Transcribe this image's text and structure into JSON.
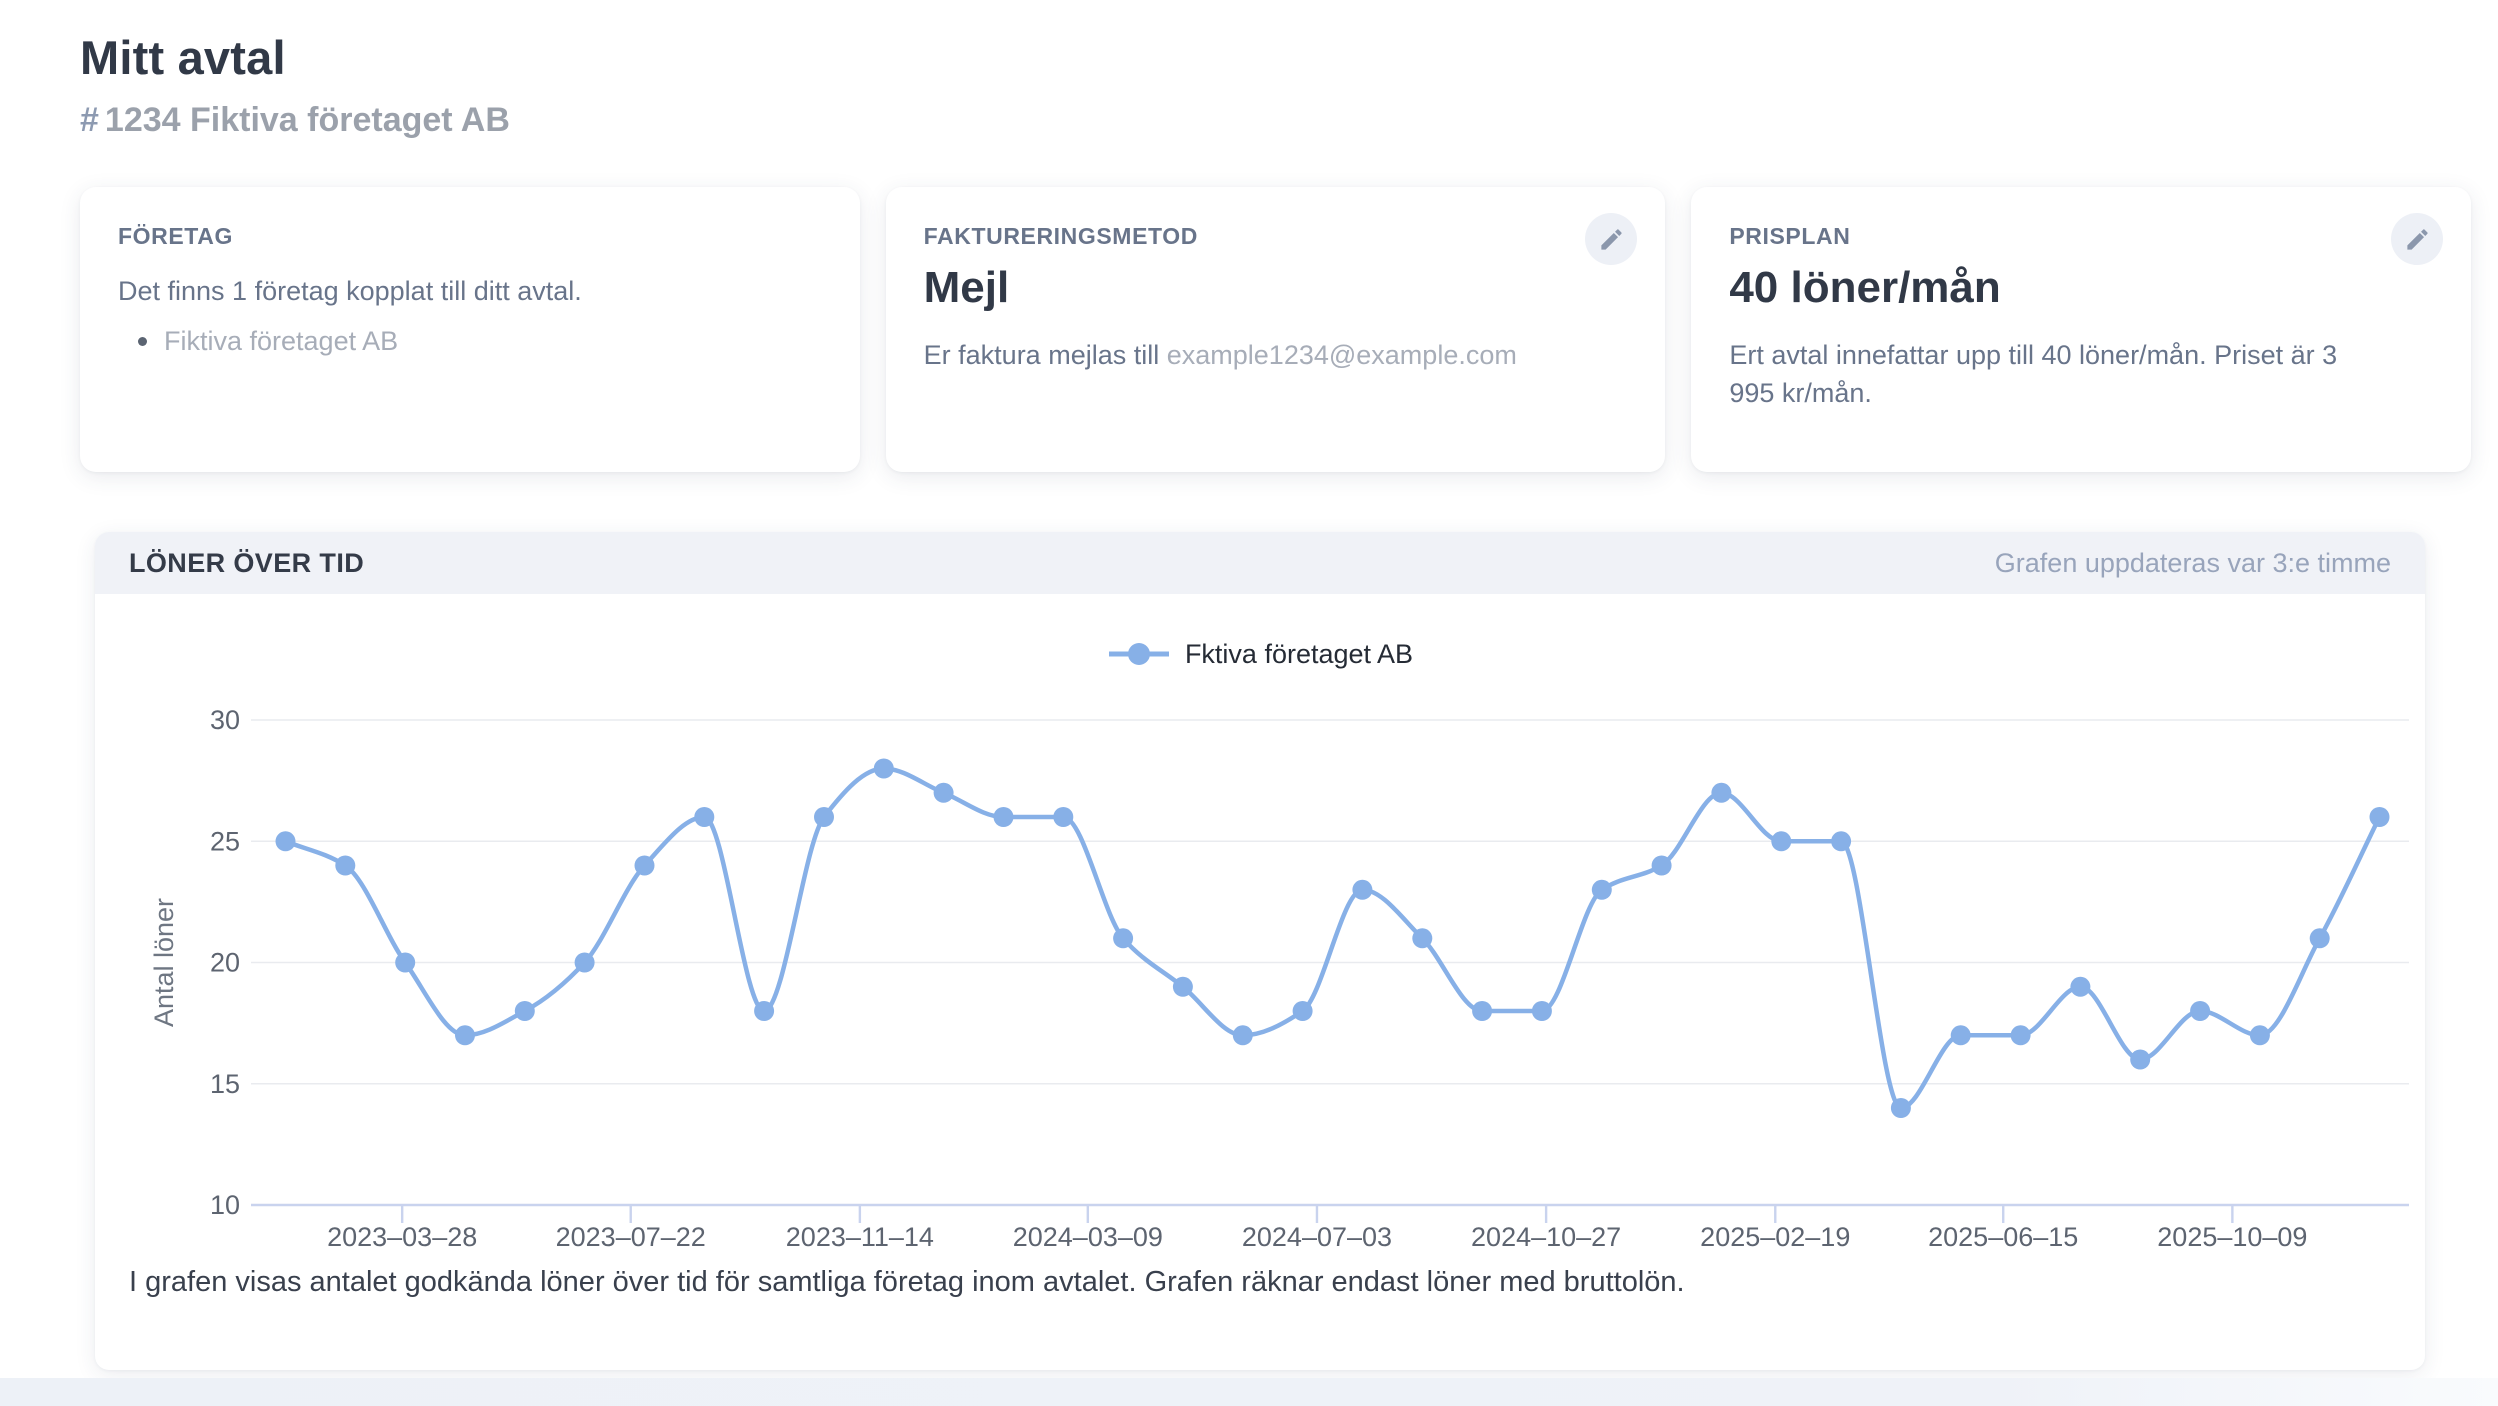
{
  "page": {
    "title": "Mitt avtal",
    "subtitle_hash": "#",
    "subtitle": "1234 Fiktiva företaget AB"
  },
  "cards": {
    "company": {
      "header": "FÖRETAG",
      "body": "Det finns 1 företag kopplat till ditt avtal.",
      "items": [
        "Fiktiva företaget AB"
      ]
    },
    "billing": {
      "header": "FAKTURERINGSMETOD",
      "value": "Mejl",
      "body_prefix": "Er faktura mejlas till",
      "email": "example1234@example.com"
    },
    "plan": {
      "header": "PRISPLAN",
      "value": "40 löner/mån",
      "body": "Ert avtal innefattar upp till 40 löner/mån. Priset är 3 995 kr/mån."
    }
  },
  "chart_panel": {
    "header": "LÖNER ÖVER TID",
    "update_note": "Grafen uppdateras var 3:e timme",
    "caption": "I grafen visas antalet godkända löner över tid för samtliga företag inom avtalet. Grafen räknar endast löner med bruttolön."
  },
  "chart_data": {
    "type": "line",
    "ylabel": "Antal löner",
    "xlabel": "",
    "ylim": [
      10,
      30
    ],
    "y_ticks": [
      10,
      15,
      20,
      25,
      30
    ],
    "grid": true,
    "legend_position": "top-center",
    "line_color": "#87b0e7",
    "legend": [
      {
        "name": "Fktiva företaget AB",
        "color": "#87b0e7"
      }
    ],
    "series": [
      {
        "name": "Fktiva företaget AB",
        "values": [
          25,
          24,
          20,
          17,
          18,
          20,
          24,
          26,
          18,
          26,
          28,
          27,
          26,
          26,
          21,
          19,
          17,
          18,
          23,
          21,
          18,
          18,
          23,
          24,
          27,
          25,
          25,
          14,
          17,
          17,
          19,
          16,
          18,
          17,
          21,
          26
        ]
      }
    ],
    "x_ticks": [
      {
        "label": "2023–03–28",
        "pos": 1.95
      },
      {
        "label": "2023–07–22",
        "pos": 5.77
      },
      {
        "label": "2023–11–14",
        "pos": 9.6
      },
      {
        "label": "2024–03–09",
        "pos": 13.41
      },
      {
        "label": "2024–07–03",
        "pos": 17.24
      },
      {
        "label": "2024–10–27",
        "pos": 21.07
      },
      {
        "label": "2025–02–19",
        "pos": 24.9
      },
      {
        "label": "2025–06–15",
        "pos": 28.71
      },
      {
        "label": "2025–10–09",
        "pos": 32.54
      }
    ]
  }
}
